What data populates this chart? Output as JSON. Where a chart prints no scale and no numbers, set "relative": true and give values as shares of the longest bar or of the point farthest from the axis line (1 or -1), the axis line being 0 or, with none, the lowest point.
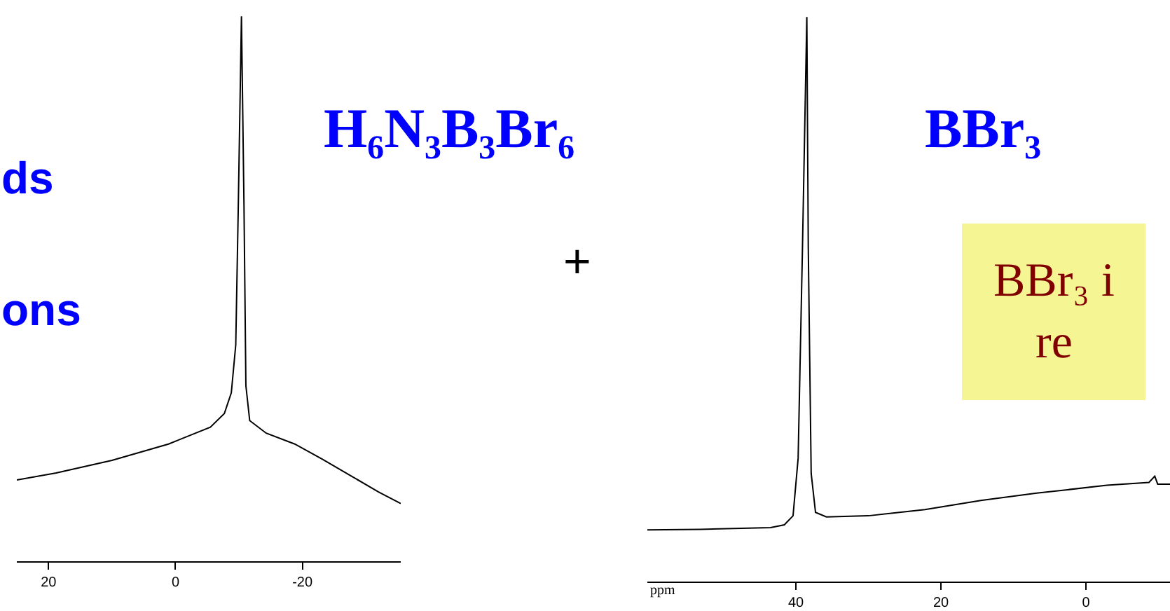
{
  "chart_data": [
    {
      "type": "line",
      "title": "H₆N₃B₃Br₆",
      "relative": true,
      "xlim": [
        25,
        -35.5
      ],
      "xticks": [
        20,
        0,
        -20
      ],
      "tick_labels": "x",
      "annotations": [
        "ds",
        "ons",
        "+"
      ],
      "series": [
        {
          "color": "#000000",
          "x": [
            25,
            18.8,
            10,
            1.1,
            -5.5,
            -7.7,
            -8.8,
            -9.5,
            -9.9,
            -10.4,
            -10.8,
            -11.1,
            -11.7,
            -14.3,
            -18.8,
            -23.2,
            -27.6,
            -32,
            -35.5
          ],
          "values": [
            0.149,
            0.162,
            0.185,
            0.215,
            0.246,
            0.271,
            0.309,
            0.397,
            0.651,
            1.0,
            0.651,
            0.322,
            0.258,
            0.235,
            0.215,
            0.187,
            0.157,
            0.127,
            0.106
          ]
        }
      ]
    },
    {
      "type": "line",
      "title": "BBr₃",
      "relative": true,
      "xlim": [
        60.5,
        -11.6
      ],
      "xticks": [
        40,
        20,
        0
      ],
      "xlabel": "ppm",
      "tick_labels": "x",
      "annotations": [
        "BBr₃ i\nre"
      ],
      "series": [
        {
          "color": "#000000",
          "x": [
            60.5,
            53.2,
            43.5,
            41.6,
            40.4,
            39.7,
            39.1,
            38.5,
            38.3,
            37.9,
            37.3,
            35.8,
            30,
            22.2,
            14.5,
            6.8,
            -2.9,
            -8.7,
            -9.5,
            -9.9,
            -11.6
          ],
          "values": [
            0.092,
            0.093,
            0.096,
            0.101,
            0.117,
            0.219,
            0.592,
            1.0,
            0.592,
            0.192,
            0.123,
            0.115,
            0.117,
            0.128,
            0.144,
            0.157,
            0.171,
            0.176,
            0.187,
            0.173,
            0.173
          ]
        }
      ]
    }
  ]
}
